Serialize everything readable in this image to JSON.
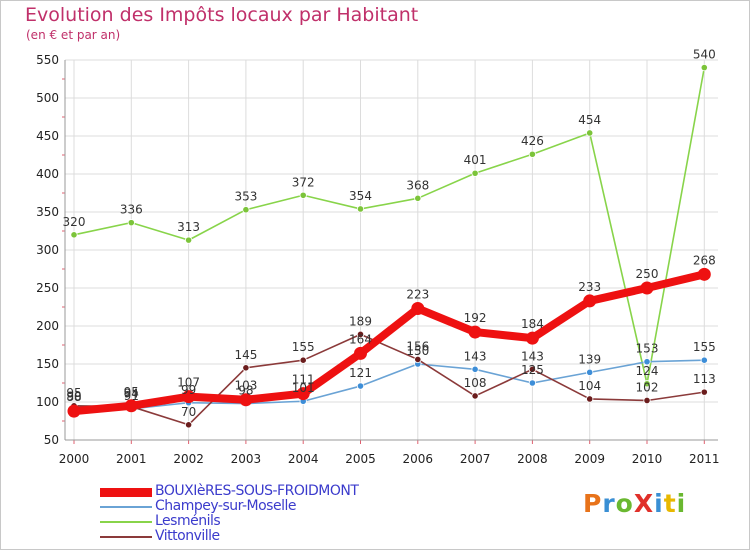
{
  "title": "Evolution des Impôts locaux par Habitant",
  "subtitle": "(en € et par an)",
  "logo": {
    "text": "ProXiti",
    "letter_colors": [
      "#e8731a",
      "#3a8fd4",
      "#6ab830",
      "#e0302a",
      "#3a8fd4",
      "#e8b800",
      "#6ab830"
    ]
  },
  "chart_data": {
    "type": "line",
    "title": "Evolution des Impôts locaux par Habitant",
    "subtitle": "(en € et par an)",
    "x": [
      "2000",
      "2001",
      "2002",
      "2003",
      "2004",
      "2005",
      "2006",
      "2007",
      "2008",
      "2009",
      "2010",
      "2011"
    ],
    "ylim": [
      50,
      550
    ],
    "yticks": [
      "50",
      "100",
      "150",
      "200",
      "250",
      "300",
      "350",
      "400",
      "450",
      "500",
      "550"
    ],
    "grid": true,
    "legend_position": "bottom-left",
    "series": [
      {
        "name": "Lesménils",
        "color": "#88d44a",
        "marker_color": "#7cc43a",
        "thick": false,
        "values": [
          320,
          336,
          313,
          353,
          372,
          354,
          368,
          401,
          426,
          454,
          124,
          540
        ],
        "labels": [
          "320",
          "336",
          "313",
          "353",
          "372",
          "354",
          "368",
          "401",
          "426",
          "454",
          "124",
          "540"
        ]
      },
      {
        "name": "Champey-sur-Moselle",
        "color": "#6aa3d5",
        "marker_color": "#3d8ed8",
        "thick": false,
        "values": [
          90,
          91,
          99,
          98,
          101,
          121,
          150,
          143,
          125,
          139,
          153,
          155
        ],
        "labels": [
          "90",
          "91",
          "99",
          "98",
          "101",
          "121",
          "150",
          "143",
          "125",
          "139",
          "153",
          "155"
        ]
      },
      {
        "name": "Vittonville",
        "color": "#8b3a3a",
        "marker_color": "#6b1d1d",
        "thick": false,
        "values": [
          95,
          94,
          70,
          145,
          155,
          189,
          156,
          108,
          143,
          104,
          102,
          113
        ],
        "labels": [
          "95",
          "94",
          "70",
          "145",
          "155",
          "189",
          "156",
          "108",
          "143",
          "104",
          "102",
          "113"
        ]
      },
      {
        "name": "BOUXIèRES-SOUS-FROIDMONT",
        "color": "#ee1111",
        "marker_color": "#ee1111",
        "thick": true,
        "values": [
          88,
          95,
          107,
          103,
          111,
          164,
          223,
          192,
          184,
          233,
          250,
          268
        ],
        "labels": [
          "88",
          "95",
          "107",
          "103",
          "111",
          "164",
          "223",
          "192",
          "184",
          "233",
          "250",
          "268"
        ]
      }
    ],
    "legend": [
      {
        "name": "BOUXIèRES-SOUS-FROIDMONT",
        "color": "#ee1111",
        "thick": true
      },
      {
        "name": "Champey-sur-Moselle",
        "color": "#6aa3d5",
        "thick": false
      },
      {
        "name": "Lesménils",
        "color": "#88d44a",
        "thick": false
      },
      {
        "name": "Vittonville",
        "color": "#8b3a3a",
        "thick": false
      }
    ]
  }
}
